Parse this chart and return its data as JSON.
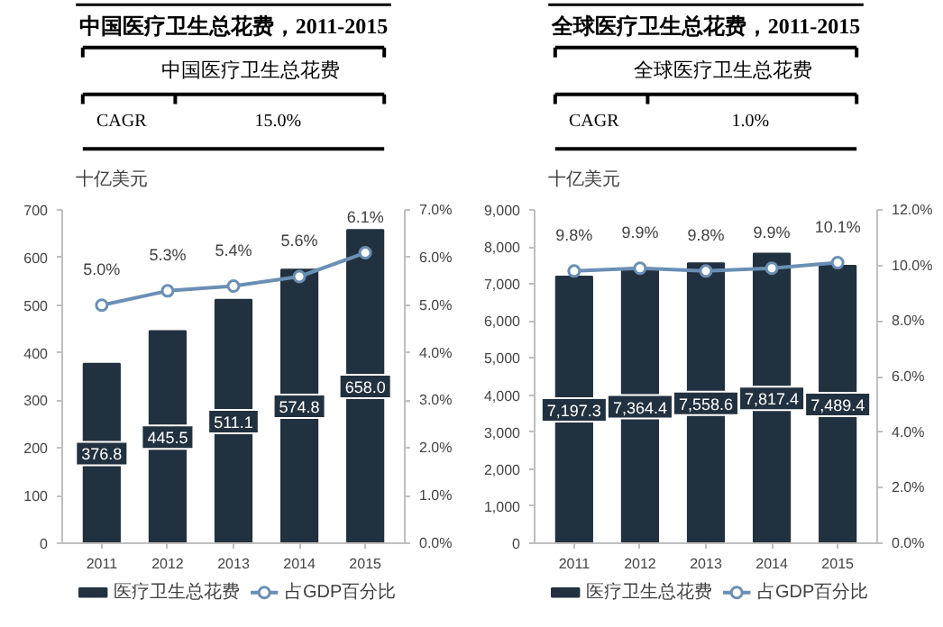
{
  "chart_data": [
    {
      "type": "bar",
      "title": "中国医疗卫生总花费，2011-2015",
      "annotations": [
        "中国医疗卫生总花费",
        "CAGR",
        "15.0%"
      ],
      "ylabel": "十亿美元",
      "categories": [
        "2011",
        "2012",
        "2013",
        "2014",
        "2015"
      ],
      "ylim": [
        0,
        700
      ],
      "yticks": [
        0,
        100,
        200,
        300,
        400,
        500,
        600,
        700
      ],
      "y2lim": [
        0,
        7
      ],
      "y2ticks": [
        {
          "value": 0,
          "label": "0.0%"
        },
        {
          "value": 1,
          "label": "1.0%"
        },
        {
          "value": 2,
          "label": "2.0%"
        },
        {
          "value": 3,
          "label": "3.0%"
        },
        {
          "value": 4,
          "label": "4.0%"
        },
        {
          "value": 5,
          "label": "5.0%"
        },
        {
          "value": 6,
          "label": "6.0%"
        },
        {
          "value": 7,
          "label": "7.0%"
        }
      ],
      "legend": "bottom",
      "grid": false,
      "series": [
        {
          "name": "医疗卫生总花费",
          "color": "#22313f",
          "values": [
            376.8,
            445.5,
            511.1,
            574.8,
            658.0
          ],
          "value_labels": [
            "376.8",
            "445.5",
            "511.1",
            "574.8",
            "658.0"
          ]
        },
        {
          "name": "占GDP百分比",
          "type": "line",
          "axis": "y2",
          "color": "#6a8fb5",
          "marker": "circle",
          "values": [
            5.0,
            5.3,
            5.4,
            5.6,
            6.1
          ],
          "value_labels": [
            "5.0%",
            "5.3%",
            "5.4%",
            "5.6%",
            "6.1%"
          ]
        }
      ]
    },
    {
      "type": "bar",
      "title": "全球医疗卫生总花费，2011-2015",
      "annotations": [
        "全球医疗卫生总花费",
        "CAGR",
        "1.0%"
      ],
      "ylabel": "十亿美元",
      "categories": [
        "2011",
        "2012",
        "2013",
        "2014",
        "2015"
      ],
      "ylim": [
        0,
        9000
      ],
      "yticks": [
        0,
        {
          "value": 1000,
          "label": "1,000"
        },
        {
          "value": 2000,
          "label": "2,000"
        },
        {
          "value": 3000,
          "label": "3,000"
        },
        {
          "value": 4000,
          "label": "4,000"
        },
        {
          "value": 5000,
          "label": "5,000"
        },
        {
          "value": 6000,
          "label": "6,000"
        },
        {
          "value": 7000,
          "label": "7,000"
        },
        {
          "value": 8000,
          "label": "8,000"
        },
        {
          "value": 9000,
          "label": "9,000"
        }
      ],
      "y2lim": [
        0,
        12
      ],
      "y2ticks": [
        {
          "value": 0,
          "label": "0.0%"
        },
        {
          "value": 2,
          "label": "2.0%"
        },
        {
          "value": 4,
          "label": "4.0%"
        },
        {
          "value": 6,
          "label": "6.0%"
        },
        {
          "value": 8,
          "label": "8.0%"
        },
        {
          "value": 10,
          "label": "10.0%"
        },
        {
          "value": 12,
          "label": "12.0%"
        }
      ],
      "legend": "bottom",
      "grid": false,
      "series": [
        {
          "name": "医疗卫生总花费",
          "color": "#22313f",
          "values": [
            7197.3,
            7364.4,
            7558.6,
            7817.4,
            7489.4
          ],
          "value_labels": [
            "7,197.3",
            "7,364.4",
            "7,558.6",
            "7,817.4",
            "7,489.4"
          ]
        },
        {
          "name": "占GDP百分比",
          "type": "line",
          "axis": "y2",
          "color": "#6a8fb5",
          "marker": "circle",
          "values": [
            9.8,
            9.9,
            9.8,
            9.9,
            10.1
          ],
          "value_labels": [
            "9.8%",
            "9.9%",
            "9.8%",
            "9.9%",
            "10.1%"
          ]
        }
      ]
    }
  ]
}
